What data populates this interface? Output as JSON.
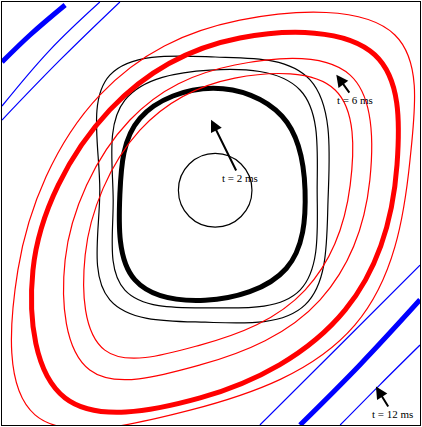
{
  "chart_data": {
    "type": "line",
    "xlim": [
      0,
      100
    ],
    "ylim": [
      0,
      100
    ],
    "tick_labels": false,
    "grid": false,
    "series": [
      {
        "color": "#000000",
        "line_style": "solid",
        "x": [
          59.8,
          57.2,
          51,
          44.8,
          42.2,
          44.8,
          51,
          57.2,
          59.8
        ],
        "y": [
          55.5,
          61.7,
          64.2,
          61.7,
          55.5,
          49.3,
          46.8,
          49.3,
          55.5
        ]
      },
      {
        "color": "#000000",
        "line_style": "thick",
        "x": [
          50.5,
          67,
          72.5,
          68,
          48.6,
          31.8,
          28.2,
          33,
          50.5
        ],
        "y": [
          79.6,
          73,
          55.5,
          37,
          29.5,
          34.3,
          54.6,
          72.5,
          79.6
        ]
      },
      {
        "color": "#000000",
        "line_style": "solid",
        "x": [
          49.8,
          71.3,
          75.4,
          71.3,
          49.8,
          29.4,
          26.6,
          29.4,
          49.8
        ],
        "y": [
          83.9,
          79.2,
          55.6,
          31.9,
          27.7,
          31.9,
          53.2,
          76.8,
          83.9
        ]
      },
      {
        "color": "#000000",
        "line_style": "solid",
        "x": [
          51,
          73.7,
          78,
          72.5,
          48.6,
          25.8,
          23.4,
          25.8,
          51
        ],
        "y": [
          87,
          81.6,
          53.2,
          28.4,
          24.3,
          29.6,
          55.6,
          82.7,
          87
        ]
      },
      {
        "color": "#ff0000",
        "line_style": "solid",
        "x": [
          55.7,
          79.7,
          83.3,
          72.5,
          47.4,
          24.6,
          19.9,
          33,
          55.7
        ],
        "y": [
          82,
          79.2,
          56.7,
          31.9,
          18.9,
          17.7,
          40.2,
          69.7,
          82
        ]
      },
      {
        "color": "#ff0000",
        "line_style": "solid",
        "x": [
          55.7,
          83.3,
          88,
          76.1,
          47.4,
          21,
          15.1,
          30.6,
          55.7
        ],
        "y": [
          85.1,
          82.7,
          57.9,
          29.6,
          14.2,
          13,
          39,
          72.1,
          85.1
        ]
      },
      {
        "color": "#ff0000",
        "line_style": "thick",
        "x": [
          56.9,
          89.2,
          94.5,
          82.1,
          47.4,
          15.1,
          7.4,
          25.8,
          56.9
        ],
        "y": [
          91.5,
          87.5,
          61.5,
          27.2,
          6.4,
          6.4,
          36.6,
          74.5,
          91.5
        ]
      },
      {
        "color": "#ff0000",
        "line_style": "solid",
        "x": [
          56.9,
          94,
          97.6,
          84.4,
          45,
          7.9,
          3.8,
          23.4,
          56.9
        ],
        "y": [
          95.7,
          92.2,
          62.6,
          23.6,
          3.5,
          2.4,
          36.6,
          78,
          95.7
        ]
      },
      {
        "color": "#0000ff",
        "line_style": "thick",
        "x": [
          0,
          6.7,
          15.1
        ],
        "y": [
          85.8,
          92.2,
          99.3
        ]
      },
      {
        "color": "#0000ff",
        "line_style": "solid",
        "x": [
          0,
          11.5,
          23.4
        ],
        "y": [
          75.4,
          88.7,
          100
        ]
      },
      {
        "color": "#0000ff",
        "line_style": "solid",
        "x": [
          0,
          13.9,
          28.2
        ],
        "y": [
          72.1,
          86.3,
          100
        ]
      },
      {
        "color": "#0000ff",
        "line_style": "thick",
        "x": [
          71.3,
          85.6,
          100
        ],
        "y": [
          0,
          14.2,
          29.6
        ]
      },
      {
        "color": "#0000ff",
        "line_style": "solid",
        "x": [
          80.9,
          90.4,
          100
        ],
        "y": [
          0,
          9.5,
          18.9
        ]
      },
      {
        "color": "#0000ff",
        "line_style": "solid",
        "x": [
          61.7,
          80.9,
          100
        ],
        "y": [
          0,
          18.9,
          37.8
        ]
      }
    ],
    "annotations": [
      {
        "text": "t = 2 ms",
        "x": 49.8,
        "y": 72.6,
        "text_x": 56.9,
        "text_y": 58.4
      },
      {
        "text": "t = 6 ms",
        "x": 79.7,
        "y": 83.2,
        "text_x": 84.4,
        "text_y": 76.8
      },
      {
        "text": "t = 12 ms",
        "x": 89.2,
        "y": 9.5,
        "text_x": 93.5,
        "text_y": 2.6
      }
    ]
  }
}
